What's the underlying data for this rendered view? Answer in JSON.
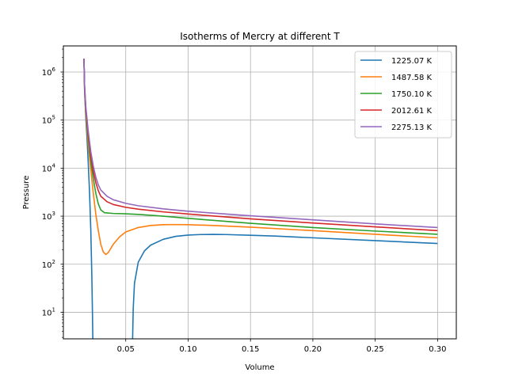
{
  "chart_data": {
    "type": "line",
    "title": "Isotherms of Mercry at different T",
    "xlabel": "Volume",
    "ylabel": "Pressure",
    "xlim": [
      0.0,
      0.315
    ],
    "ylim": [
      2.8,
      3500000
    ],
    "yscale": "log",
    "grid": true,
    "legend_position": "top-right",
    "x_ticks": [
      {
        "value": 0.05,
        "label": "0.05"
      },
      {
        "value": 0.1,
        "label": "0.10"
      },
      {
        "value": 0.15,
        "label": "0.15"
      },
      {
        "value": 0.2,
        "label": "0.20"
      },
      {
        "value": 0.25,
        "label": "0.25"
      },
      {
        "value": 0.3,
        "label": "0.30"
      }
    ],
    "y_ticks": [
      {
        "value": 10,
        "base": "10",
        "exp": "1"
      },
      {
        "value": 100,
        "base": "10",
        "exp": "2"
      },
      {
        "value": 1000,
        "base": "10",
        "exp": "3"
      },
      {
        "value": 10000,
        "base": "10",
        "exp": "4"
      },
      {
        "value": 100000,
        "base": "10",
        "exp": "5"
      },
      {
        "value": 1000000,
        "base": "10",
        "exp": "6"
      }
    ],
    "series": [
      {
        "name": "1225.07 K",
        "color": "#1f77b4",
        "segments": [
          [
            [
              0.0165,
              1900000
            ],
            [
              0.017,
              400000
            ],
            [
              0.018,
              110000
            ],
            [
              0.019,
              40000
            ],
            [
              0.02,
              12000
            ],
            [
              0.021,
              3000
            ],
            [
              0.022,
              500
            ],
            [
              0.0228,
              60
            ],
            [
              0.0233,
              10
            ],
            [
              0.0236,
              2.8
            ]
          ],
          [
            [
              0.0555,
              2.8
            ],
            [
              0.056,
              12
            ],
            [
              0.057,
              40
            ],
            [
              0.06,
              110
            ],
            [
              0.065,
              190
            ],
            [
              0.07,
              250
            ],
            [
              0.08,
              330
            ],
            [
              0.09,
              380
            ],
            [
              0.1,
              405
            ],
            [
              0.11,
              415
            ],
            [
              0.12,
              418
            ],
            [
              0.13,
              415
            ],
            [
              0.15,
              400
            ],
            [
              0.17,
              385
            ],
            [
              0.2,
              355
            ],
            [
              0.25,
              310
            ],
            [
              0.3,
              270
            ]
          ]
        ]
      },
      {
        "name": "1487.58 K",
        "color": "#ff7f0e",
        "segments": [
          [
            [
              0.0165,
              1900000
            ],
            [
              0.017,
              450000
            ],
            [
              0.018,
              130000
            ],
            [
              0.02,
              30000
            ],
            [
              0.022,
              9000
            ],
            [
              0.024,
              3000
            ],
            [
              0.026,
              1100
            ],
            [
              0.028,
              500
            ],
            [
              0.03,
              260
            ],
            [
              0.032,
              180
            ],
            [
              0.034,
              160
            ],
            [
              0.036,
              175
            ],
            [
              0.04,
              260
            ],
            [
              0.045,
              370
            ],
            [
              0.05,
              470
            ],
            [
              0.06,
              580
            ],
            [
              0.07,
              640
            ],
            [
              0.08,
              665
            ],
            [
              0.09,
              670
            ],
            [
              0.1,
              665
            ],
            [
              0.12,
              640
            ],
            [
              0.15,
              590
            ],
            [
              0.2,
              500
            ],
            [
              0.25,
              420
            ],
            [
              0.3,
              355
            ]
          ]
        ]
      },
      {
        "name": "1750.10 K",
        "color": "#2ca02c",
        "segments": [
          [
            [
              0.0165,
              1900000
            ],
            [
              0.017,
              480000
            ],
            [
              0.018,
              150000
            ],
            [
              0.02,
              40000
            ],
            [
              0.022,
              14000
            ],
            [
              0.024,
              6000
            ],
            [
              0.026,
              3000
            ],
            [
              0.028,
              1800
            ],
            [
              0.03,
              1350
            ],
            [
              0.033,
              1180
            ],
            [
              0.04,
              1140
            ],
            [
              0.05,
              1120
            ],
            [
              0.06,
              1090
            ],
            [
              0.08,
              1000
            ],
            [
              0.1,
              900
            ],
            [
              0.12,
              820
            ],
            [
              0.15,
              710
            ],
            [
              0.2,
              580
            ],
            [
              0.25,
              490
            ],
            [
              0.3,
              420
            ]
          ]
        ]
      },
      {
        "name": "2012.61 K",
        "color": "#d62728",
        "segments": [
          [
            [
              0.0165,
              1900000
            ],
            [
              0.017,
              500000
            ],
            [
              0.018,
              170000
            ],
            [
              0.02,
              48000
            ],
            [
              0.022,
              18000
            ],
            [
              0.024,
              8500
            ],
            [
              0.026,
              5000
            ],
            [
              0.028,
              3400
            ],
            [
              0.03,
              2600
            ],
            [
              0.035,
              2000
            ],
            [
              0.04,
              1750
            ],
            [
              0.05,
              1530
            ],
            [
              0.06,
              1400
            ],
            [
              0.08,
              1230
            ],
            [
              0.1,
              1110
            ],
            [
              0.12,
              1010
            ],
            [
              0.15,
              880
            ],
            [
              0.2,
              720
            ],
            [
              0.25,
              600
            ],
            [
              0.3,
              500
            ]
          ]
        ]
      },
      {
        "name": "2275.13 K",
        "color": "#9467bd",
        "segments": [
          [
            [
              0.0165,
              1900000
            ],
            [
              0.017,
              520000
            ],
            [
              0.018,
              190000
            ],
            [
              0.02,
              57000
            ],
            [
              0.022,
              22000
            ],
            [
              0.024,
              11000
            ],
            [
              0.026,
              6500
            ],
            [
              0.028,
              4500
            ],
            [
              0.03,
              3500
            ],
            [
              0.035,
              2600
            ],
            [
              0.04,
              2200
            ],
            [
              0.05,
              1850
            ],
            [
              0.06,
              1650
            ],
            [
              0.08,
              1420
            ],
            [
              0.1,
              1270
            ],
            [
              0.12,
              1160
            ],
            [
              0.15,
              1020
            ],
            [
              0.2,
              840
            ],
            [
              0.25,
              690
            ],
            [
              0.3,
              580
            ]
          ]
        ]
      }
    ]
  }
}
